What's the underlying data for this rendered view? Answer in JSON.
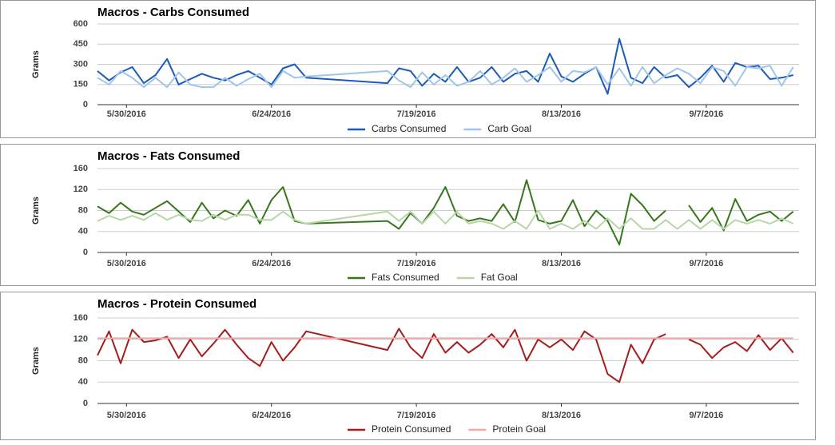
{
  "chart_data": [
    {
      "type": "line",
      "title": "Macros - Carbs Consumed",
      "ylabel": "Grams",
      "x": [
        "2016-05-25",
        "2016-05-27",
        "2016-05-29",
        "2016-05-31",
        "2016-06-02",
        "2016-06-04",
        "2016-06-06",
        "2016-06-08",
        "2016-06-10",
        "2016-06-12",
        "2016-06-14",
        "2016-06-16",
        "2016-06-18",
        "2016-06-20",
        "2016-06-22",
        "2016-06-24",
        "2016-06-26",
        "2016-06-28",
        "2016-06-30",
        "2016-07-14",
        "2016-07-16",
        "2016-07-18",
        "2016-07-20",
        "2016-07-22",
        "2016-07-24",
        "2016-07-26",
        "2016-07-28",
        "2016-07-30",
        "2016-08-01",
        "2016-08-03",
        "2016-08-05",
        "2016-08-07",
        "2016-08-09",
        "2016-08-11",
        "2016-08-13",
        "2016-08-15",
        "2016-08-17",
        "2016-08-19",
        "2016-08-21",
        "2016-08-23",
        "2016-08-25",
        "2016-08-27",
        "2016-08-29",
        "2016-08-31",
        "2016-09-02",
        "2016-09-04",
        "2016-09-06",
        "2016-09-08",
        "2016-09-10",
        "2016-09-12",
        "2016-09-14",
        "2016-09-16",
        "2016-09-18",
        "2016-09-20",
        "2016-09-22"
      ],
      "xlim": [
        "2016-05-25",
        "2016-09-23"
      ],
      "xticks": [
        {
          "value": "2016-05-30",
          "label": "5/30/2016"
        },
        {
          "value": "2016-06-24",
          "label": "6/24/2016"
        },
        {
          "value": "2016-07-19",
          "label": "7/19/2016"
        },
        {
          "value": "2016-08-13",
          "label": "8/13/2016"
        },
        {
          "value": "2016-09-07",
          "label": "9/7/2016"
        }
      ],
      "ylim": [
        0,
        600
      ],
      "yticks": [
        0,
        150,
        300,
        450,
        600
      ],
      "grid": true,
      "legend": "bottom",
      "series": [
        {
          "name": "Carbs Consumed",
          "color": "#1c5bb8",
          "values": [
            250,
            180,
            240,
            280,
            160,
            220,
            340,
            150,
            190,
            230,
            200,
            180,
            220,
            250,
            200,
            150,
            270,
            300,
            200,
            160,
            270,
            250,
            140,
            230,
            170,
            280,
            170,
            200,
            280,
            170,
            230,
            250,
            170,
            380,
            210,
            170,
            230,
            280,
            80,
            490,
            200,
            160,
            280,
            200,
            220,
            130,
            200,
            290,
            170,
            310,
            280,
            290,
            190,
            200,
            220
          ]
        },
        {
          "name": "Carb Goal",
          "color": "#9fc5e8",
          "values": [
            200,
            150,
            250,
            200,
            130,
            200,
            130,
            240,
            150,
            130,
            130,
            200,
            140,
            190,
            230,
            130,
            250,
            200,
            210,
            250,
            180,
            130,
            240,
            150,
            220,
            140,
            170,
            250,
            150,
            200,
            270,
            170,
            220,
            280,
            170,
            250,
            240,
            280,
            150,
            270,
            140,
            280,
            160,
            220,
            270,
            230,
            160,
            280,
            250,
            140,
            280,
            270,
            290,
            140,
            280
          ]
        }
      ]
    },
    {
      "type": "line",
      "title": "Macros - Fats Consumed",
      "ylabel": "Grams",
      "x": [
        "2016-05-25",
        "2016-05-27",
        "2016-05-29",
        "2016-05-31",
        "2016-06-02",
        "2016-06-04",
        "2016-06-06",
        "2016-06-08",
        "2016-06-10",
        "2016-06-12",
        "2016-06-14",
        "2016-06-16",
        "2016-06-18",
        "2016-06-20",
        "2016-06-22",
        "2016-06-24",
        "2016-06-26",
        "2016-06-28",
        "2016-06-30",
        "2016-07-14",
        "2016-07-16",
        "2016-07-18",
        "2016-07-20",
        "2016-07-22",
        "2016-07-24",
        "2016-07-26",
        "2016-07-28",
        "2016-07-30",
        "2016-08-01",
        "2016-08-03",
        "2016-08-05",
        "2016-08-07",
        "2016-08-09",
        "2016-08-11",
        "2016-08-13",
        "2016-08-15",
        "2016-08-17",
        "2016-08-19",
        "2016-08-21",
        "2016-08-23",
        "2016-08-25",
        "2016-08-27",
        "2016-08-29",
        "2016-08-31",
        "2016-09-02",
        "2016-09-04",
        "2016-09-06",
        "2016-09-08",
        "2016-09-10",
        "2016-09-12",
        "2016-09-14",
        "2016-09-16",
        "2016-09-18",
        "2016-09-20",
        "2016-09-22"
      ],
      "xlim": [
        "2016-05-25",
        "2016-09-23"
      ],
      "xticks": [
        {
          "value": "2016-05-30",
          "label": "5/30/2016"
        },
        {
          "value": "2016-06-24",
          "label": "6/24/2016"
        },
        {
          "value": "2016-07-19",
          "label": "7/19/2016"
        },
        {
          "value": "2016-08-13",
          "label": "8/13/2016"
        },
        {
          "value": "2016-09-07",
          "label": "9/7/2016"
        }
      ],
      "ylim": [
        0,
        160
      ],
      "yticks": [
        0,
        40,
        80,
        120,
        160
      ],
      "grid": true,
      "legend": "bottom",
      "series": [
        {
          "name": "Fats Consumed",
          "color": "#38761d",
          "values": [
            88,
            75,
            95,
            78,
            72,
            85,
            98,
            78,
            58,
            95,
            65,
            80,
            70,
            100,
            55,
            100,
            125,
            60,
            55,
            60,
            45,
            75,
            55,
            85,
            125,
            70,
            60,
            65,
            60,
            92,
            58,
            138,
            62,
            55,
            60,
            100,
            50,
            80,
            60,
            15,
            112,
            90,
            60,
            80,
            null,
            90,
            58,
            85,
            42,
            102,
            60,
            72,
            78,
            60,
            78
          ]
        },
        {
          "name": "Fat Goal",
          "color": "#b6d7a8",
          "values": [
            60,
            70,
            62,
            70,
            62,
            75,
            62,
            72,
            62,
            60,
            72,
            62,
            72,
            72,
            62,
            62,
            78,
            62,
            55,
            78,
            60,
            78,
            55,
            78,
            55,
            78,
            55,
            60,
            55,
            45,
            60,
            45,
            80,
            45,
            55,
            45,
            60,
            45,
            65,
            45,
            65,
            45,
            45,
            62,
            45,
            62,
            45,
            62,
            45,
            62,
            55,
            62,
            55,
            65,
            55
          ]
        }
      ]
    },
    {
      "type": "line",
      "title": "Macros - Protein Consumed",
      "ylabel": "Grams",
      "x": [
        "2016-05-25",
        "2016-05-27",
        "2016-05-29",
        "2016-05-31",
        "2016-06-02",
        "2016-06-04",
        "2016-06-06",
        "2016-06-08",
        "2016-06-10",
        "2016-06-12",
        "2016-06-14",
        "2016-06-16",
        "2016-06-18",
        "2016-06-20",
        "2016-06-22",
        "2016-06-24",
        "2016-06-26",
        "2016-06-28",
        "2016-06-30",
        "2016-07-14",
        "2016-07-16",
        "2016-07-18",
        "2016-07-20",
        "2016-07-22",
        "2016-07-24",
        "2016-07-26",
        "2016-07-28",
        "2016-07-30",
        "2016-08-01",
        "2016-08-03",
        "2016-08-05",
        "2016-08-07",
        "2016-08-09",
        "2016-08-11",
        "2016-08-13",
        "2016-08-15",
        "2016-08-17",
        "2016-08-19",
        "2016-08-21",
        "2016-08-23",
        "2016-08-25",
        "2016-08-27",
        "2016-08-29",
        "2016-08-31",
        "2016-09-02",
        "2016-09-04",
        "2016-09-06",
        "2016-09-08",
        "2016-09-10",
        "2016-09-12",
        "2016-09-14",
        "2016-09-16",
        "2016-09-18",
        "2016-09-20",
        "2016-09-22"
      ],
      "xlim": [
        "2016-05-25",
        "2016-09-23"
      ],
      "xticks": [
        {
          "value": "2016-05-30",
          "label": "5/30/2016"
        },
        {
          "value": "2016-06-24",
          "label": "6/24/2016"
        },
        {
          "value": "2016-07-19",
          "label": "7/19/2016"
        },
        {
          "value": "2016-08-13",
          "label": "8/13/2016"
        },
        {
          "value": "2016-09-07",
          "label": "9/7/2016"
        }
      ],
      "ylim": [
        0,
        160
      ],
      "yticks": [
        0,
        40,
        80,
        120,
        160
      ],
      "grid": true,
      "legend": "bottom",
      "series": [
        {
          "name": "Protein Consumed",
          "color": "#a61c1c",
          "values": [
            90,
            135,
            75,
            138,
            115,
            118,
            125,
            85,
            120,
            88,
            112,
            138,
            110,
            85,
            70,
            115,
            80,
            105,
            135,
            100,
            140,
            105,
            85,
            130,
            95,
            115,
            95,
            110,
            130,
            105,
            138,
            80,
            120,
            105,
            120,
            100,
            135,
            120,
            55,
            40,
            110,
            75,
            120,
            130,
            null,
            120,
            110,
            85,
            105,
            115,
            98,
            128,
            100,
            122,
            95
          ]
        },
        {
          "name": "Protein Goal",
          "color": "#f4a7a7",
          "values": [
            122,
            122,
            122,
            122,
            122,
            122,
            122,
            122,
            122,
            122,
            122,
            122,
            122,
            122,
            122,
            122,
            122,
            122,
            122,
            122,
            122,
            122,
            122,
            122,
            122,
            122,
            122,
            122,
            122,
            122,
            122,
            122,
            122,
            122,
            122,
            122,
            122,
            122,
            122,
            122,
            122,
            122,
            122,
            122,
            122,
            122,
            122,
            122,
            122,
            122,
            122,
            122,
            122,
            122,
            122
          ]
        }
      ]
    }
  ]
}
